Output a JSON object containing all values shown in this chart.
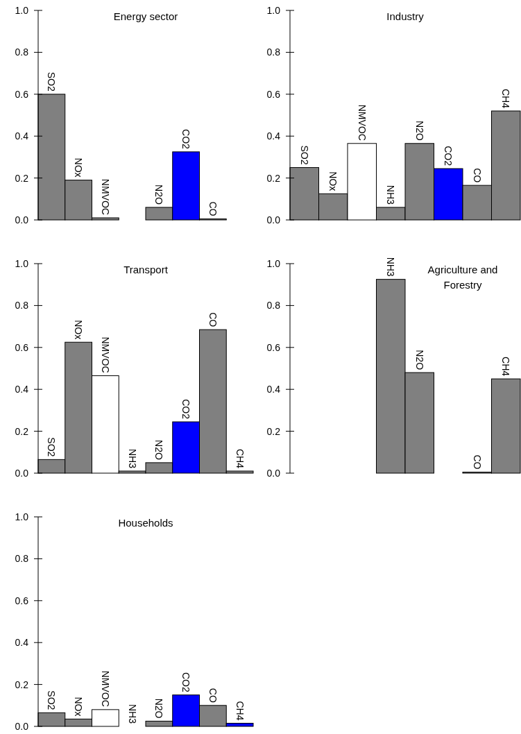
{
  "chart_data": [
    {
      "type": "bar",
      "title": "Energy sector",
      "categories": [
        "SO2",
        "NOx",
        "NMVOC",
        null,
        "N2O",
        "CO2",
        "CO",
        null
      ],
      "values": [
        0.6,
        0.19,
        0.01,
        null,
        0.06,
        0.325,
        0.005,
        null
      ],
      "colors": [
        "#808080",
        "#808080",
        "#808080",
        null,
        "#808080",
        "#0000ff",
        "#808080",
        null
      ],
      "ylim": [
        0,
        1
      ],
      "yticks": [
        {
          "value": 0,
          "label": "0.0"
        },
        {
          "value": 0.2,
          "label": "0.2"
        },
        {
          "value": 0.4,
          "label": "0.4"
        },
        {
          "value": 0.6,
          "label": "0.6"
        },
        {
          "value": 0.8,
          "label": "0.8"
        },
        {
          "value": 1,
          "label": "1.0"
        }
      ]
    },
    {
      "type": "bar",
      "title": "Industry",
      "categories": [
        "SO2",
        "NOx",
        "NMVOC",
        "NH3",
        "N2O",
        "CO2",
        "CO",
        "CH4"
      ],
      "values": [
        0.25,
        0.125,
        0.365,
        0.06,
        0.365,
        0.245,
        0.165,
        0.52
      ],
      "colors": [
        "#808080",
        "#808080",
        "#ffffff",
        "#808080",
        "#808080",
        "#0000ff",
        "#808080",
        "#808080"
      ],
      "ylim": [
        0,
        1
      ],
      "yticks": [
        {
          "value": 0,
          "label": "0.0"
        },
        {
          "value": 0.2,
          "label": "0.2"
        },
        {
          "value": 0.4,
          "label": "0.4"
        },
        {
          "value": 0.6,
          "label": "0.6"
        },
        {
          "value": 0.8,
          "label": "0.8"
        },
        {
          "value": 1,
          "label": "1.0"
        }
      ]
    },
    {
      "type": "bar",
      "title": "Transport",
      "categories": [
        "SO2",
        "NOx",
        "NMVOC",
        "NH3",
        "N2O",
        "CO2",
        "CO",
        "CH4"
      ],
      "values": [
        0.065,
        0.625,
        0.465,
        0.01,
        0.05,
        0.245,
        0.685,
        0.01
      ],
      "colors": [
        "#808080",
        "#808080",
        "#ffffff",
        "#808080",
        "#808080",
        "#0000ff",
        "#808080",
        "#808080"
      ],
      "ylim": [
        0,
        1
      ],
      "yticks": [
        {
          "value": 0,
          "label": "0.0"
        },
        {
          "value": 0.2,
          "label": "0.2"
        },
        {
          "value": 0.4,
          "label": "0.4"
        },
        {
          "value": 0.6,
          "label": "0.6"
        },
        {
          "value": 0.8,
          "label": "0.8"
        },
        {
          "value": 1,
          "label": "1.0"
        }
      ]
    },
    {
      "type": "bar",
      "title": "Agriculture and Forestry",
      "categories": [
        null,
        null,
        null,
        "NH3",
        "N2O",
        null,
        "CO",
        "CH4"
      ],
      "values": [
        null,
        null,
        null,
        0.925,
        0.48,
        null,
        0.005,
        0.45
      ],
      "colors": [
        null,
        null,
        null,
        "#808080",
        "#808080",
        null,
        "#808080",
        "#808080"
      ],
      "ylim": [
        0,
        1
      ],
      "yticks": [
        {
          "value": 0,
          "label": "0.0"
        },
        {
          "value": 0.2,
          "label": "0.2"
        },
        {
          "value": 0.4,
          "label": "0.4"
        },
        {
          "value": 0.6,
          "label": "0.6"
        },
        {
          "value": 0.8,
          "label": "0.8"
        },
        {
          "value": 1,
          "label": "1.0"
        }
      ]
    },
    {
      "type": "bar",
      "title": "Households",
      "categories": [
        "SO2",
        "NOx",
        "NMVOC",
        "NH3",
        "N2O",
        "CO2",
        "CO",
        "CH4"
      ],
      "values": [
        0.065,
        0.035,
        0.08,
        0,
        0.025,
        0.15,
        0.1,
        0.015
      ],
      "colors": [
        "#808080",
        "#808080",
        "#ffffff",
        "#808080",
        "#808080",
        "#0000ff",
        "#808080",
        "#0000ff"
      ],
      "ylim": [
        0,
        1
      ],
      "yticks": [
        {
          "value": 0,
          "label": "0.0"
        },
        {
          "value": 0.2,
          "label": "0.2"
        },
        {
          "value": 0.4,
          "label": "0.4"
        },
        {
          "value": 0.6,
          "label": "0.6"
        },
        {
          "value": 0.8,
          "label": "0.8"
        },
        {
          "value": 1,
          "label": "1.0"
        }
      ]
    }
  ]
}
